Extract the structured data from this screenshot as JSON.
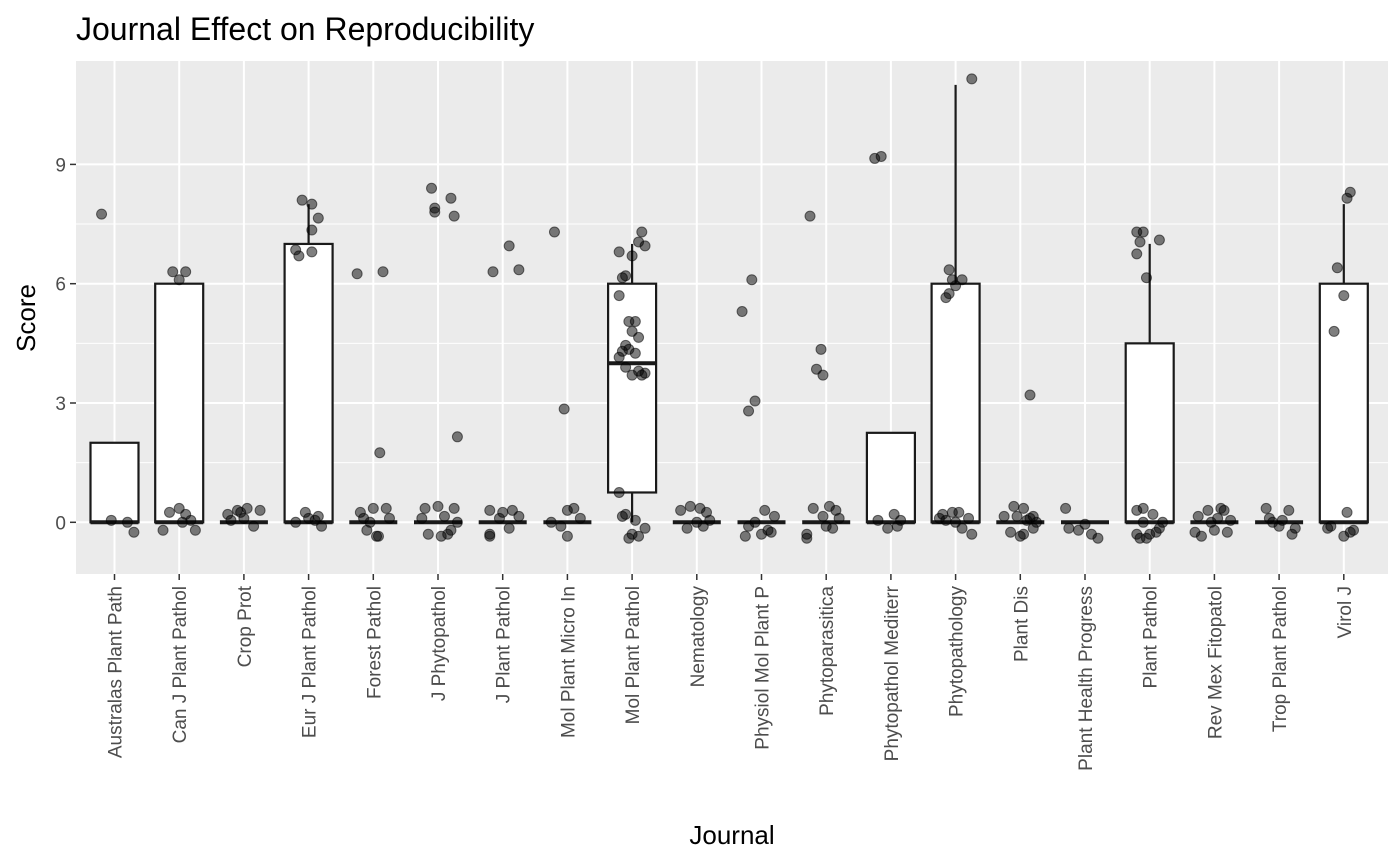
{
  "chart_data": {
    "type": "box",
    "title": "Journal Effect on Reproducibility",
    "xlabel": "Journal",
    "ylabel": "Score",
    "ylim": [
      -1.3,
      11.6
    ],
    "yticks": [
      0,
      3,
      6,
      9
    ],
    "categories": [
      "Australas Plant Path",
      "Can J Plant Pathol",
      "Crop Prot",
      "Eur J Plant Pathol",
      "Forest Pathol",
      "J Phytopathol",
      "J Plant Pathol",
      "Mol Plant Micro In",
      "Mol Plant Pathol",
      "Nematology",
      "Physiol Mol Plant P",
      "Phytoparasitica",
      "Phytopathol Mediterr",
      "Phytopathology",
      "Plant Dis",
      "Plant Health Progress",
      "Plant Pathol",
      "Rev Mex Fitopatol",
      "Trop Plant Pathol",
      "Virol J"
    ],
    "boxes": [
      {
        "q1": 0,
        "median": 0,
        "q3": 2,
        "whisker_low": 0,
        "whisker_high": 2
      },
      {
        "q1": 0,
        "median": 0,
        "q3": 6,
        "whisker_low": 0,
        "whisker_high": 6
      },
      {
        "q1": 0,
        "median": 0,
        "q3": 0,
        "whisker_low": 0,
        "whisker_high": 0
      },
      {
        "q1": 0,
        "median": 0,
        "q3": 7,
        "whisker_low": 0,
        "whisker_high": 8
      },
      {
        "q1": 0,
        "median": 0,
        "q3": 0,
        "whisker_low": 0,
        "whisker_high": 0
      },
      {
        "q1": 0,
        "median": 0,
        "q3": 0,
        "whisker_low": 0,
        "whisker_high": 0
      },
      {
        "q1": 0,
        "median": 0,
        "q3": 0,
        "whisker_low": 0,
        "whisker_high": 0
      },
      {
        "q1": 0,
        "median": 0,
        "q3": 0,
        "whisker_low": 0,
        "whisker_high": 0
      },
      {
        "q1": 0.75,
        "median": 4,
        "q3": 6,
        "whisker_low": 0,
        "whisker_high": 7
      },
      {
        "q1": 0,
        "median": 0,
        "q3": 0,
        "whisker_low": 0,
        "whisker_high": 0
      },
      {
        "q1": 0,
        "median": 0,
        "q3": 0,
        "whisker_low": 0,
        "whisker_high": 0
      },
      {
        "q1": 0,
        "median": 0,
        "q3": 0,
        "whisker_low": 0,
        "whisker_high": 0
      },
      {
        "q1": 0,
        "median": 0,
        "q3": 2.25,
        "whisker_low": 0,
        "whisker_high": 2.25
      },
      {
        "q1": 0,
        "median": 0,
        "q3": 6,
        "whisker_low": 0,
        "whisker_high": 11
      },
      {
        "q1": 0,
        "median": 0,
        "q3": 0,
        "whisker_low": 0,
        "whisker_high": 0
      },
      {
        "q1": 0,
        "median": 0,
        "q3": 0,
        "whisker_low": 0,
        "whisker_high": 0
      },
      {
        "q1": 0,
        "median": 0,
        "q3": 4.5,
        "whisker_low": 0,
        "whisker_high": 7
      },
      {
        "q1": 0,
        "median": 0,
        "q3": 0,
        "whisker_low": 0,
        "whisker_high": 0
      },
      {
        "q1": 0,
        "median": 0,
        "q3": 0,
        "whisker_low": 0,
        "whisker_high": 0
      },
      {
        "q1": 0,
        "median": 0,
        "q3": 6,
        "whisker_low": 0,
        "whisker_high": 8
      }
    ],
    "points": [
      [
        [
          -0.2,
          7.75
        ],
        [
          0.3,
          -0.25
        ],
        [
          -0.05,
          0.05
        ],
        [
          0.2,
          0.0
        ]
      ],
      [
        [
          -0.1,
          6.3
        ],
        [
          0.1,
          6.3
        ],
        [
          0.0,
          6.1
        ],
        [
          -0.15,
          0.25
        ],
        [
          0.1,
          0.2
        ],
        [
          0.0,
          0.35
        ],
        [
          -0.25,
          -0.2
        ],
        [
          0.25,
          -0.2
        ],
        [
          0.05,
          0.0
        ],
        [
          0.18,
          0.05
        ]
      ],
      [
        [
          -0.25,
          0.2
        ],
        [
          -0.1,
          0.3
        ],
        [
          0.05,
          0.35
        ],
        [
          0.25,
          0.3
        ],
        [
          0.15,
          -0.1
        ],
        [
          -0.2,
          0.05
        ],
        [
          0.0,
          0.1
        ],
        [
          -0.05,
          0.25
        ]
      ],
      [
        [
          -0.1,
          8.1
        ],
        [
          0.05,
          7.35
        ],
        [
          0.05,
          8.0
        ],
        [
          0.15,
          7.65
        ],
        [
          -0.2,
          6.85
        ],
        [
          -0.15,
          6.7
        ],
        [
          0.05,
          6.8
        ],
        [
          -0.05,
          0.25
        ],
        [
          0.1,
          0.05
        ],
        [
          0.2,
          -0.1
        ],
        [
          -0.2,
          0.0
        ],
        [
          0.0,
          0.1
        ],
        [
          0.15,
          0.15
        ]
      ],
      [
        [
          -0.25,
          6.25
        ],
        [
          0.15,
          6.3
        ],
        [
          0.1,
          1.75
        ],
        [
          -0.2,
          0.25
        ],
        [
          0.0,
          0.35
        ],
        [
          0.2,
          0.35
        ],
        [
          -0.1,
          -0.2
        ],
        [
          0.05,
          -0.35
        ],
        [
          0.08,
          -0.35
        ],
        [
          -0.05,
          0.0
        ],
        [
          0.25,
          0.1
        ],
        [
          -0.15,
          0.1
        ]
      ],
      [
        [
          -0.1,
          8.4
        ],
        [
          -0.05,
          7.9
        ],
        [
          -0.05,
          7.8
        ],
        [
          0.2,
          8.15
        ],
        [
          0.25,
          7.7
        ],
        [
          0.3,
          2.15
        ],
        [
          -0.2,
          0.35
        ],
        [
          0.0,
          0.4
        ],
        [
          0.25,
          0.35
        ],
        [
          -0.15,
          -0.3
        ],
        [
          0.05,
          -0.35
        ],
        [
          0.15,
          -0.3
        ],
        [
          -0.25,
          0.1
        ],
        [
          0.1,
          0.15
        ],
        [
          0.3,
          0.0
        ],
        [
          0.2,
          -0.2
        ]
      ],
      [
        [
          -0.15,
          6.3
        ],
        [
          0.1,
          6.95
        ],
        [
          0.25,
          6.35
        ],
        [
          -0.2,
          0.3
        ],
        [
          0.0,
          0.25
        ],
        [
          0.15,
          0.3
        ],
        [
          -0.2,
          -0.3
        ],
        [
          0.1,
          -0.15
        ],
        [
          -0.05,
          0.1
        ],
        [
          0.25,
          0.15
        ],
        [
          -0.2,
          -0.35
        ]
      ],
      [
        [
          -0.2,
          7.3
        ],
        [
          -0.05,
          2.85
        ],
        [
          0.0,
          0.3
        ],
        [
          0.1,
          0.35
        ],
        [
          0.2,
          0.1
        ],
        [
          -0.1,
          -0.1
        ],
        [
          0.0,
          -0.35
        ],
        [
          -0.25,
          0.0
        ]
      ],
      [
        [
          -0.2,
          6.8
        ],
        [
          -0.1,
          6.2
        ],
        [
          -0.15,
          6.15
        ],
        [
          -0.2,
          5.7
        ],
        [
          0.0,
          6.7
        ],
        [
          0.1,
          7.05
        ],
        [
          0.15,
          7.3
        ],
        [
          0.2,
          6.95
        ],
        [
          -0.05,
          5.05
        ],
        [
          0.0,
          4.8
        ],
        [
          0.05,
          5.05
        ],
        [
          0.1,
          4.65
        ],
        [
          -0.1,
          4.45
        ],
        [
          -0.15,
          4.3
        ],
        [
          -0.2,
          4.15
        ],
        [
          -0.05,
          4.35
        ],
        [
          0.05,
          4.25
        ],
        [
          0.1,
          3.8
        ],
        [
          -0.1,
          3.9
        ],
        [
          0.0,
          3.7
        ],
        [
          0.2,
          3.75
        ],
        [
          0.15,
          3.7
        ],
        [
          -0.2,
          0.75
        ],
        [
          -0.15,
          0.15
        ],
        [
          -0.1,
          0.2
        ],
        [
          0.05,
          0.05
        ],
        [
          0.0,
          -0.3
        ],
        [
          0.1,
          -0.35
        ],
        [
          0.2,
          -0.15
        ],
        [
          -0.05,
          -0.4
        ]
      ],
      [
        [
          -0.25,
          0.3
        ],
        [
          -0.1,
          0.4
        ],
        [
          0.05,
          0.35
        ],
        [
          0.15,
          0.25
        ],
        [
          -0.15,
          -0.15
        ],
        [
          0.1,
          -0.1
        ],
        [
          0.2,
          0.05
        ],
        [
          0.0,
          0.0
        ]
      ],
      [
        [
          -0.3,
          5.3
        ],
        [
          -0.15,
          6.1
        ],
        [
          -0.2,
          2.8
        ],
        [
          -0.1,
          3.05
        ],
        [
          0.05,
          0.3
        ],
        [
          -0.2,
          -0.1
        ],
        [
          0.1,
          -0.2
        ],
        [
          0.2,
          0.15
        ],
        [
          -0.25,
          -0.35
        ],
        [
          0.0,
          -0.3
        ],
        [
          0.15,
          -0.25
        ],
        [
          -0.1,
          0.0
        ]
      ],
      [
        [
          -0.25,
          7.7
        ],
        [
          -0.15,
          3.85
        ],
        [
          -0.05,
          3.7
        ],
        [
          -0.08,
          4.35
        ],
        [
          -0.2,
          0.35
        ],
        [
          0.05,
          0.4
        ],
        [
          0.15,
          0.3
        ],
        [
          -0.3,
          -0.3
        ],
        [
          -0.3,
          -0.4
        ],
        [
          0.0,
          -0.1
        ],
        [
          0.1,
          -0.15
        ],
        [
          0.2,
          0.1
        ],
        [
          -0.05,
          0.15
        ]
      ],
      [
        [
          -0.25,
          9.15
        ],
        [
          -0.15,
          9.2
        ],
        [
          -0.2,
          0.05
        ],
        [
          0.05,
          0.2
        ],
        [
          0.1,
          -0.1
        ],
        [
          -0.05,
          -0.15
        ],
        [
          0.15,
          0.05
        ]
      ],
      [
        [
          -0.1,
          6.35
        ],
        [
          -0.05,
          6.1
        ],
        [
          0.0,
          5.95
        ],
        [
          -0.15,
          5.65
        ],
        [
          -0.1,
          5.75
        ],
        [
          0.25,
          11.15
        ],
        [
          0.1,
          6.1
        ],
        [
          -0.2,
          0.2
        ],
        [
          -0.05,
          0.25
        ],
        [
          0.05,
          0.25
        ],
        [
          0.2,
          0.1
        ],
        [
          -0.25,
          0.1
        ],
        [
          0.1,
          -0.15
        ],
        [
          0.25,
          -0.3
        ],
        [
          0.0,
          0.0
        ],
        [
          -0.15,
          0.05
        ]
      ],
      [
        [
          0.15,
          3.2
        ],
        [
          -0.1,
          0.4
        ],
        [
          0.05,
          0.35
        ],
        [
          0.15,
          0.1
        ],
        [
          0.2,
          -0.15
        ],
        [
          -0.15,
          -0.25
        ],
        [
          0.0,
          -0.35
        ],
        [
          -0.25,
          0.15
        ],
        [
          0.1,
          0.05
        ],
        [
          0.25,
          0.0
        ],
        [
          -0.05,
          0.15
        ],
        [
          0.05,
          -0.3
        ],
        [
          0.2,
          0.15
        ]
      ],
      [
        [
          -0.3,
          0.35
        ],
        [
          -0.25,
          -0.15
        ],
        [
          -0.1,
          -0.2
        ],
        [
          0.1,
          -0.3
        ],
        [
          0.2,
          -0.4
        ],
        [
          0.0,
          -0.05
        ]
      ],
      [
        [
          -0.2,
          7.3
        ],
        [
          -0.1,
          7.3
        ],
        [
          -0.15,
          7.05
        ],
        [
          -0.2,
          6.75
        ],
        [
          0.15,
          7.1
        ],
        [
          -0.05,
          6.15
        ],
        [
          -0.2,
          0.3
        ],
        [
          -0.1,
          0.35
        ],
        [
          0.05,
          0.2
        ],
        [
          -0.2,
          -0.3
        ],
        [
          -0.15,
          -0.4
        ],
        [
          0.0,
          -0.3
        ],
        [
          0.1,
          -0.25
        ],
        [
          -0.05,
          -0.4
        ],
        [
          0.15,
          -0.15
        ],
        [
          0.2,
          0.0
        ],
        [
          -0.1,
          0.0
        ]
      ],
      [
        [
          -0.25,
          0.15
        ],
        [
          -0.1,
          0.3
        ],
        [
          0.1,
          0.35
        ],
        [
          0.15,
          0.3
        ],
        [
          -0.3,
          -0.25
        ],
        [
          -0.2,
          -0.35
        ],
        [
          0.0,
          -0.2
        ],
        [
          0.2,
          -0.25
        ],
        [
          0.05,
          0.1
        ],
        [
          -0.05,
          0.0
        ],
        [
          0.25,
          0.05
        ]
      ],
      [
        [
          -0.2,
          0.35
        ],
        [
          0.15,
          0.3
        ],
        [
          -0.15,
          0.1
        ],
        [
          0.0,
          -0.1
        ],
        [
          0.2,
          -0.3
        ],
        [
          0.25,
          -0.15
        ],
        [
          -0.1,
          0.0
        ],
        [
          0.05,
          0.05
        ]
      ],
      [
        [
          -0.1,
          6.4
        ],
        [
          0.0,
          5.7
        ],
        [
          -0.15,
          4.8
        ],
        [
          0.05,
          8.15
        ],
        [
          0.1,
          8.3
        ],
        [
          0.05,
          0.25
        ],
        [
          -0.2,
          -0.1
        ],
        [
          0.1,
          -0.25
        ],
        [
          0.0,
          -0.35
        ],
        [
          -0.25,
          -0.15
        ],
        [
          0.15,
          -0.2
        ]
      ]
    ]
  }
}
